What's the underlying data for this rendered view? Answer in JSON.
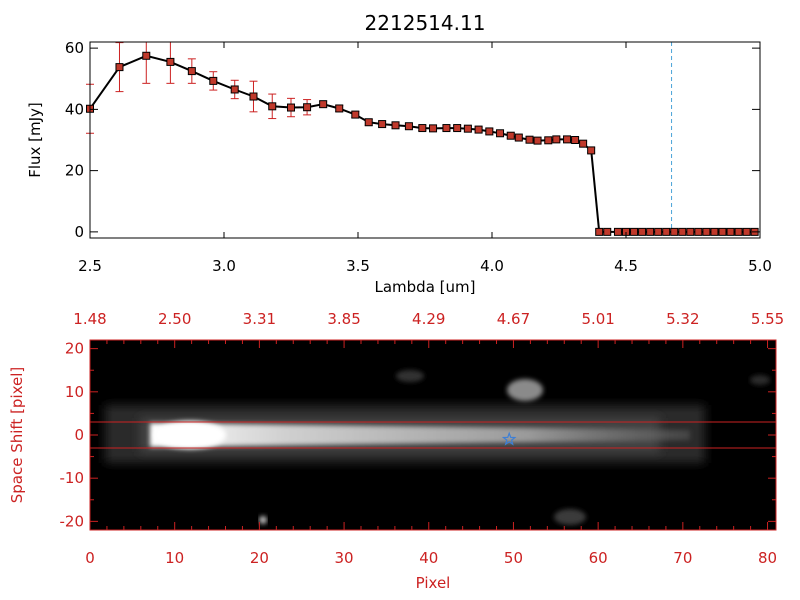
{
  "chart_data": [
    {
      "type": "line",
      "title": "2212514.11",
      "xlabel": "Lambda [um]",
      "ylabel": "Flux [mJy]",
      "xlim": [
        2.5,
        5.0
      ],
      "ylim": [
        -2,
        62
      ],
      "xticks": [
        "2.5",
        "3.0",
        "3.5",
        "4.0",
        "4.5",
        "5.0"
      ],
      "xtick_values": [
        2.5,
        3.0,
        3.5,
        4.0,
        4.5,
        5.0
      ],
      "yticks": [
        "0",
        "20",
        "40",
        "60"
      ],
      "ytick_values": [
        0,
        20,
        40,
        60
      ],
      "line_color": "#000000",
      "marker_color": "#c0392b",
      "errorbar_color": "#cc2222",
      "vline": {
        "x": 4.67,
        "color": "#4aa3d8",
        "style": "dashed"
      },
      "series": [
        {
          "x": [
            2.5,
            2.61,
            2.71,
            2.8,
            2.88,
            2.96,
            3.04,
            3.11,
            3.18,
            3.25,
            3.31,
            3.37,
            3.43,
            3.49,
            3.54,
            3.59,
            3.64,
            3.69,
            3.74,
            3.78,
            3.83,
            3.87,
            3.91,
            3.95,
            3.99,
            4.03,
            4.07,
            4.1,
            4.14,
            4.17,
            4.21,
            4.24,
            4.28,
            4.31,
            4.34,
            4.37,
            4.4,
            4.43,
            4.47,
            4.5,
            4.53,
            4.56,
            4.59,
            4.62,
            4.65,
            4.68,
            4.71,
            4.74,
            4.77,
            4.8,
            4.83,
            4.86,
            4.89,
            4.92,
            4.95,
            4.98
          ],
          "y": [
            40.2,
            53.8,
            57.5,
            55.5,
            52.5,
            49.3,
            46.5,
            44.2,
            41.0,
            40.6,
            40.7,
            41.7,
            40.3,
            38.3,
            35.8,
            35.2,
            34.8,
            34.5,
            33.9,
            33.8,
            33.9,
            33.9,
            33.7,
            33.4,
            32.8,
            32.2,
            31.4,
            30.8,
            30.1,
            29.8,
            29.9,
            30.2,
            30.2,
            30.0,
            28.8,
            26.6,
            0,
            0,
            0,
            0,
            0,
            0,
            0,
            0,
            0,
            0,
            0,
            0,
            0,
            0,
            0,
            0,
            0,
            0,
            0,
            0
          ],
          "yerr": [
            8,
            8,
            9,
            7,
            4,
            3,
            3,
            5,
            4,
            3,
            2.5,
            1,
            1,
            1,
            1,
            1,
            0.8,
            0.8,
            0.8,
            0.8,
            0.8,
            0.8,
            0.8,
            0.8,
            0.8,
            0.8,
            0.8,
            0.8,
            0.8,
            0.8,
            0.8,
            0.8,
            0.8,
            0.8,
            0.8,
            0.8,
            0,
            0,
            0,
            0,
            0,
            0,
            0,
            0,
            0,
            0,
            0,
            0,
            0,
            0,
            0,
            0,
            0,
            0,
            0,
            0
          ]
        }
      ]
    },
    {
      "type": "heatmap",
      "xlabel": "Pixel",
      "ylabel": "Space Shift [pixel]",
      "xlim": [
        0,
        81
      ],
      "ylim": [
        -22,
        22
      ],
      "xticks": [
        "0",
        "10",
        "20",
        "30",
        "40",
        "50",
        "60",
        "70",
        "80"
      ],
      "xtick_values": [
        0,
        10,
        20,
        30,
        40,
        50,
        60,
        70,
        80
      ],
      "yticks": [
        "-20",
        "-10",
        "0",
        "10",
        "20"
      ],
      "ytick_values": [
        -20,
        -10,
        0,
        10,
        20
      ],
      "top_axis_ticks": [
        "1.48",
        "2.50",
        "3.31",
        "3.85",
        "4.29",
        "4.67",
        "5.01",
        "5.32",
        "5.55"
      ],
      "axis_color": "#cc2222",
      "hlines": [
        3,
        -3
      ],
      "hline_color": "#cc2222",
      "marker": {
        "type": "star",
        "x": 49.5,
        "y": -1,
        "color": "#3d7fd6"
      },
      "background": "#000000"
    }
  ]
}
